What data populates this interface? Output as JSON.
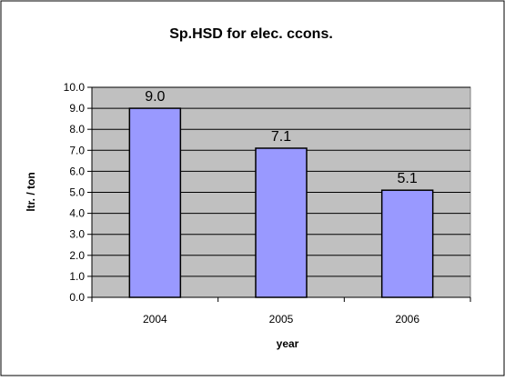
{
  "chart_data": {
    "type": "bar",
    "title": "Sp.HSD for elec. ccons.",
    "xlabel": "year",
    "ylabel": "ltr. / ton",
    "categories": [
      "2004",
      "2005",
      "2006"
    ],
    "values": [
      9.0,
      7.1,
      5.1
    ],
    "data_labels": [
      "9.0",
      "7.1",
      "5.1"
    ],
    "ylim": [
      0,
      10
    ],
    "ytick_labels": [
      "0.0",
      "1.0",
      "2.0",
      "3.0",
      "4.0",
      "5.0",
      "6.0",
      "7.0",
      "8.0",
      "9.0",
      "10.0"
    ],
    "grid": true,
    "legend": false,
    "colors": {
      "bar_fill": "#9999ff",
      "bar_stroke": "#000000",
      "plot_bg": "#c0c0c0",
      "gridline": "#000000",
      "chart_bg": "#ffffff",
      "frame": "#000000"
    }
  }
}
